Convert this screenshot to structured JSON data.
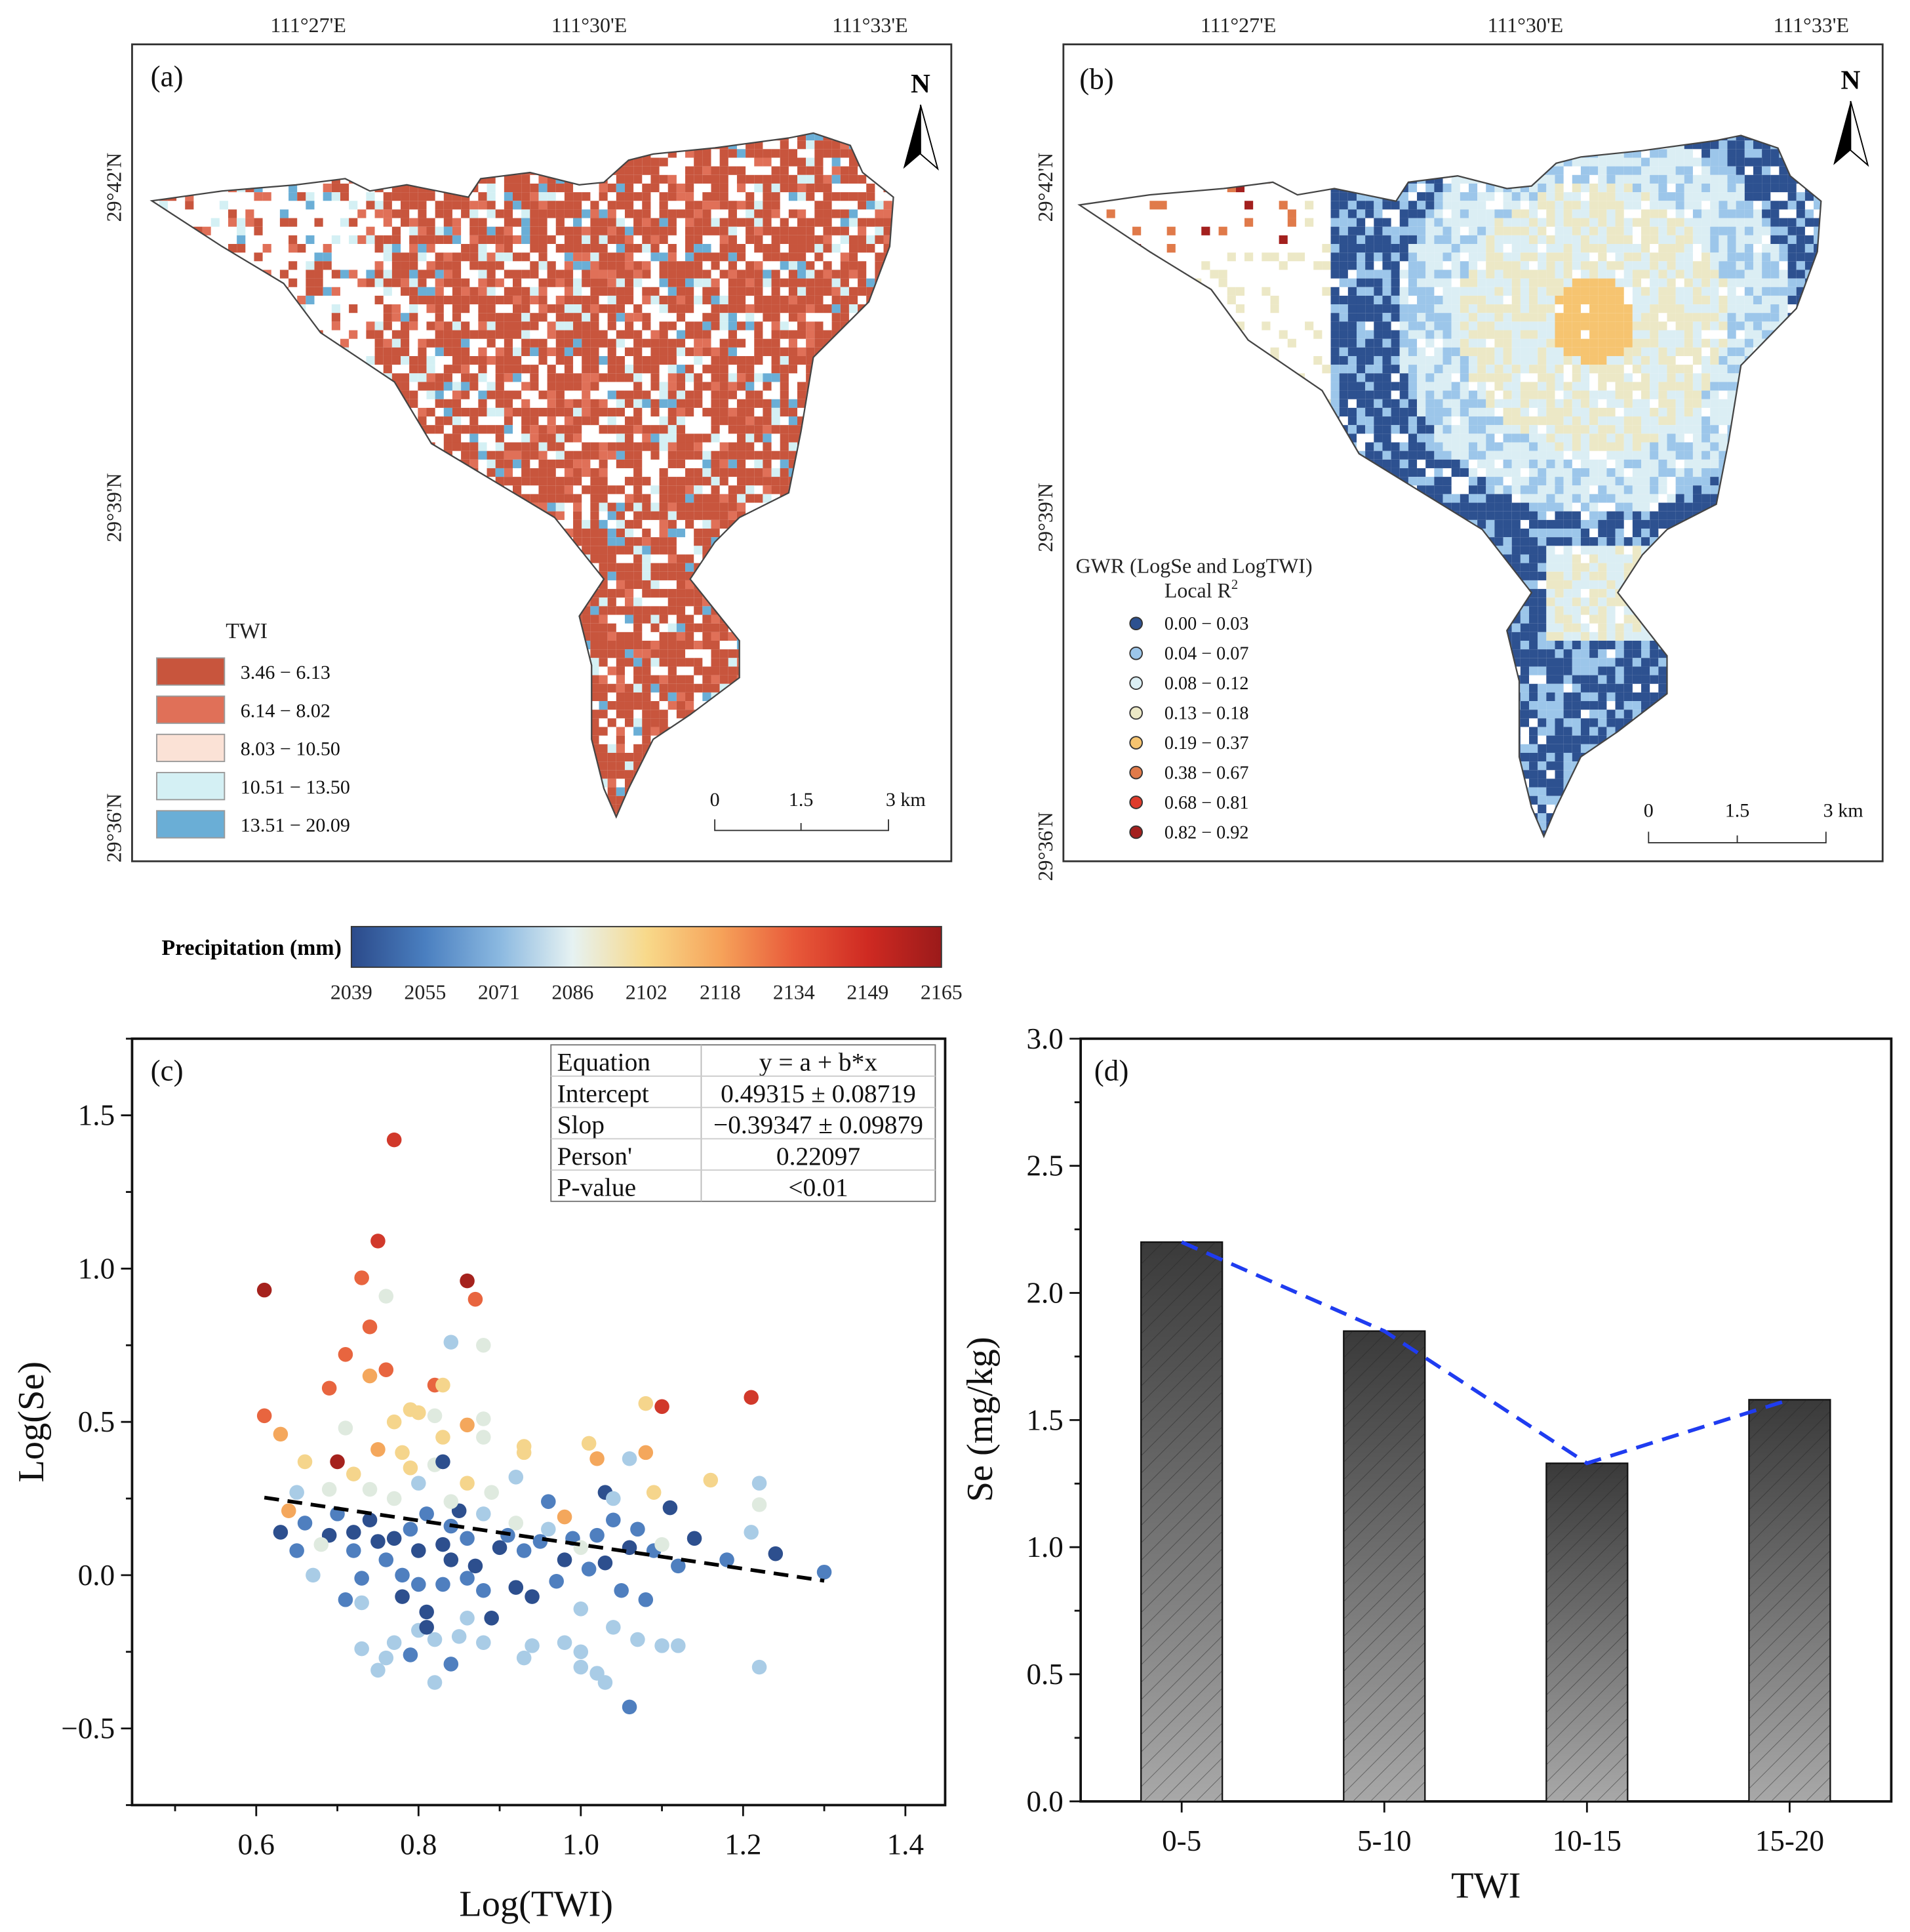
{
  "panel_a": {
    "tag": "(a)",
    "north": "N",
    "lon_labels": [
      "111°27'E",
      "111°30'E",
      "111°33'E"
    ],
    "lat_labels": [
      "29°42'N",
      "29°39'N",
      "29°36'N"
    ],
    "legend_title": "TWI",
    "legend": [
      {
        "label": "3.46 − 6.13",
        "color": "#c8553d"
      },
      {
        "label": "6.14 − 8.02",
        "color": "#e07058"
      },
      {
        "label": "8.03 − 10.50",
        "color": "#fbe2d6"
      },
      {
        "label": "10.51 − 13.50",
        "color": "#d4f0f4"
      },
      {
        "label": "13.51 − 20.09",
        "color": "#6aaed6"
      }
    ],
    "scale": [
      "0",
      "1.5",
      "3 km"
    ]
  },
  "panel_b": {
    "tag": "(b)",
    "north": "N",
    "lon_labels": [
      "111°27'E",
      "111°30'E",
      "111°33'E"
    ],
    "lat_labels": [
      "29°42'N",
      "29°39'N",
      "29°36'N"
    ],
    "legend_title": "GWR (LogSe and LogTWI)",
    "legend_subtitle": "Local R",
    "legend_sup": "2",
    "legend": [
      {
        "label": "0.00 − 0.03",
        "color": "#2d5190"
      },
      {
        "label": "0.04 − 0.07",
        "color": "#9cc6ea"
      },
      {
        "label": "0.08 − 0.12",
        "color": "#dbeef4"
      },
      {
        "label": "0.13 − 0.18",
        "color": "#ece8c6"
      },
      {
        "label": "0.19 − 0.37",
        "color": "#f6c470"
      },
      {
        "label": "0.38 − 0.67",
        "color": "#e07a4a"
      },
      {
        "label": "0.68 − 0.81",
        "color": "#de3b2c"
      },
      {
        "label": "0.82 − 0.92",
        "color": "#a3201e"
      }
    ],
    "scale": [
      "0",
      "1.5",
      "3 km"
    ]
  },
  "colorbar": {
    "title": "Precipitation (mm)",
    "ticks": [
      "2039",
      "2055",
      "2071",
      "2086",
      "2102",
      "2118",
      "2134",
      "2149",
      "2165"
    ],
    "colors": [
      "#2b4a8a",
      "#4a7fc0",
      "#8ab8e0",
      "#e6f2f2",
      "#f8d98a",
      "#f6a35a",
      "#e85a3a",
      "#cf2a22",
      "#9b1a1a"
    ]
  },
  "chart_data": [
    {
      "type": "scatter",
      "tag": "(c)",
      "xlabel": "Log(TWI)",
      "ylabel": "Log(Se)",
      "xlim": [
        0.447,
        1.449
      ],
      "ylim": [
        -0.75,
        1.75
      ],
      "xticks": [
        "0.6",
        "0.8",
        "1.0",
        "1.2",
        "1.4"
      ],
      "xtick_values": [
        0.6,
        0.8,
        1.0,
        1.2,
        1.4
      ],
      "yticks": [
        "1.5",
        "1.0",
        "0.5",
        "0.0",
        "−0.5"
      ],
      "ytick_values": [
        1.5,
        1.0,
        0.5,
        0.0,
        -0.5
      ],
      "point_colors": [
        "#2d4f8e",
        "#4f7fbf",
        "#a9cce6",
        "#dfeadf",
        "#f5d58c",
        "#f4a75c",
        "#e8653f",
        "#d1392b",
        "#a5221d"
      ],
      "points": [
        [
          0.77,
          1.42,
          7
        ],
        [
          0.75,
          1.09,
          7
        ],
        [
          0.73,
          0.97,
          6
        ],
        [
          0.61,
          0.93,
          8
        ],
        [
          0.86,
          0.96,
          8
        ],
        [
          0.87,
          0.9,
          6
        ],
        [
          0.76,
          0.91,
          3
        ],
        [
          0.74,
          0.81,
          6
        ],
        [
          0.84,
          0.76,
          2
        ],
        [
          0.88,
          0.75,
          3
        ],
        [
          0.71,
          0.72,
          6
        ],
        [
          0.76,
          0.67,
          6
        ],
        [
          0.74,
          0.65,
          5
        ],
        [
          0.82,
          0.62,
          6
        ],
        [
          0.83,
          0.62,
          4
        ],
        [
          0.69,
          0.61,
          6
        ],
        [
          0.61,
          0.52,
          6
        ],
        [
          0.79,
          0.54,
          4
        ],
        [
          0.8,
          0.53,
          4
        ],
        [
          0.82,
          0.52,
          3
        ],
        [
          0.88,
          0.51,
          3
        ],
        [
          0.86,
          0.49,
          5
        ],
        [
          0.63,
          0.46,
          5
        ],
        [
          0.77,
          0.5,
          4
        ],
        [
          0.83,
          0.45,
          4
        ],
        [
          0.88,
          0.45,
          3
        ],
        [
          1.08,
          0.56,
          4
        ],
        [
          1.1,
          0.55,
          7
        ],
        [
          1.21,
          0.58,
          7
        ],
        [
          0.71,
          0.48,
          3
        ],
        [
          0.93,
          0.42,
          4
        ],
        [
          0.93,
          0.4,
          4
        ],
        [
          1.01,
          0.43,
          4
        ],
        [
          1.06,
          0.38,
          2
        ],
        [
          1.02,
          0.38,
          5
        ],
        [
          1.08,
          0.4,
          5
        ],
        [
          0.66,
          0.37,
          4
        ],
        [
          0.7,
          0.37,
          8
        ],
        [
          0.75,
          0.41,
          5
        ],
        [
          0.78,
          0.4,
          4
        ],
        [
          0.82,
          0.36,
          3
        ],
        [
          0.83,
          0.37,
          0
        ],
        [
          0.79,
          0.35,
          4
        ],
        [
          0.72,
          0.33,
          4
        ],
        [
          0.92,
          0.32,
          2
        ],
        [
          0.98,
          0.19,
          5
        ],
        [
          1.16,
          0.31,
          4
        ],
        [
          1.22,
          0.3,
          2
        ],
        [
          1.22,
          0.23,
          3
        ],
        [
          1.21,
          0.14,
          2
        ],
        [
          1.09,
          0.27,
          4
        ],
        [
          1.03,
          0.27,
          0
        ],
        [
          0.86,
          0.3,
          4
        ],
        [
          0.89,
          0.27,
          3
        ],
        [
          0.65,
          0.27,
          2
        ],
        [
          0.64,
          0.21,
          5
        ],
        [
          0.63,
          0.14,
          0
        ],
        [
          0.65,
          0.08,
          1
        ],
        [
          0.67,
          0.0,
          2
        ],
        [
          0.66,
          0.17,
          1
        ],
        [
          0.69,
          0.13,
          0
        ],
        [
          0.7,
          0.2,
          1
        ],
        [
          0.72,
          0.14,
          0
        ],
        [
          0.72,
          0.08,
          1
        ],
        [
          0.73,
          -0.01,
          1
        ],
        [
          0.71,
          -0.08,
          1
        ],
        [
          0.73,
          -0.09,
          2
        ],
        [
          0.74,
          0.18,
          0
        ],
        [
          0.75,
          0.11,
          0
        ],
        [
          0.76,
          0.05,
          1
        ],
        [
          0.77,
          0.12,
          0
        ],
        [
          0.78,
          0.0,
          1
        ],
        [
          0.78,
          -0.07,
          0
        ],
        [
          0.79,
          0.15,
          1
        ],
        [
          0.8,
          0.08,
          0
        ],
        [
          0.8,
          -0.03,
          1
        ],
        [
          0.81,
          0.2,
          1
        ],
        [
          0.81,
          -0.12,
          0
        ],
        [
          0.82,
          -0.21,
          2
        ],
        [
          0.83,
          0.1,
          0
        ],
        [
          0.83,
          -0.03,
          1
        ],
        [
          0.84,
          0.05,
          0
        ],
        [
          0.84,
          0.16,
          1
        ],
        [
          0.85,
          0.21,
          0
        ],
        [
          0.86,
          -0.01,
          1
        ],
        [
          0.86,
          0.12,
          1
        ],
        [
          0.87,
          0.03,
          0
        ],
        [
          0.88,
          -0.05,
          1
        ],
        [
          0.89,
          -0.14,
          0
        ],
        [
          0.9,
          0.09,
          0
        ],
        [
          0.91,
          0.13,
          1
        ],
        [
          0.92,
          -0.04,
          0
        ],
        [
          0.93,
          0.08,
          1
        ],
        [
          0.94,
          -0.07,
          0
        ],
        [
          0.95,
          0.11,
          1
        ],
        [
          0.96,
          0.24,
          1
        ],
        [
          0.97,
          -0.02,
          1
        ],
        [
          0.98,
          0.05,
          0
        ],
        [
          0.99,
          0.12,
          1
        ],
        [
          1.0,
          -0.11,
          2
        ],
        [
          1.01,
          0.02,
          1
        ],
        [
          1.02,
          0.13,
          1
        ],
        [
          1.03,
          0.04,
          0
        ],
        [
          1.04,
          0.18,
          1
        ],
        [
          1.05,
          -0.05,
          1
        ],
        [
          1.06,
          0.09,
          0
        ],
        [
          1.06,
          -0.43,
          1
        ],
        [
          1.07,
          0.15,
          1
        ],
        [
          1.08,
          -0.08,
          1
        ],
        [
          1.09,
          0.08,
          1
        ],
        [
          1.1,
          -0.23,
          2
        ],
        [
          1.11,
          0.22,
          0
        ],
        [
          1.12,
          0.03,
          1
        ],
        [
          1.14,
          0.12,
          0
        ],
        [
          1.18,
          0.05,
          1
        ],
        [
          1.24,
          0.07,
          0
        ],
        [
          1.3,
          0.01,
          1
        ],
        [
          1.22,
          -0.3,
          2
        ],
        [
          0.73,
          -0.24,
          2
        ],
        [
          0.75,
          -0.31,
          2
        ],
        [
          0.76,
          -0.27,
          2
        ],
        [
          0.77,
          -0.22,
          2
        ],
        [
          0.79,
          -0.26,
          1
        ],
        [
          0.8,
          -0.18,
          2
        ],
        [
          0.81,
          -0.17,
          0
        ],
        [
          0.82,
          -0.35,
          2
        ],
        [
          0.84,
          -0.29,
          1
        ],
        [
          0.85,
          -0.2,
          2
        ],
        [
          0.86,
          -0.14,
          2
        ],
        [
          0.88,
          -0.22,
          2
        ],
        [
          0.93,
          -0.27,
          2
        ],
        [
          0.94,
          -0.23,
          2
        ],
        [
          0.98,
          -0.22,
          2
        ],
        [
          1.0,
          -0.25,
          2
        ],
        [
          1.0,
          -0.3,
          2
        ],
        [
          1.02,
          -0.32,
          2
        ],
        [
          1.03,
          -0.35,
          2
        ],
        [
          1.04,
          -0.17,
          2
        ],
        [
          1.07,
          -0.21,
          2
        ],
        [
          1.12,
          -0.23,
          2
        ],
        [
          0.68,
          0.1,
          3
        ],
        [
          0.69,
          0.28,
          3
        ],
        [
          0.74,
          0.28,
          3
        ],
        [
          0.77,
          0.25,
          3
        ],
        [
          0.8,
          0.3,
          2
        ],
        [
          0.84,
          0.24,
          3
        ],
        [
          0.88,
          0.2,
          2
        ],
        [
          0.92,
          0.17,
          3
        ],
        [
          0.96,
          0.15,
          2
        ],
        [
          1.0,
          0.09,
          3
        ],
        [
          1.04,
          0.25,
          2
        ],
        [
          1.1,
          0.1,
          3
        ]
      ],
      "fit": {
        "intercept": 0.49315,
        "slope": -0.39347,
        "x_range": [
          0.61,
          1.3
        ]
      },
      "stats_table": [
        [
          "Equation",
          "y = a + b*x"
        ],
        [
          "Intercept",
          "0.49315 ± 0.08719"
        ],
        [
          "Slop",
          "−0.39347 ± 0.09879"
        ],
        [
          "Person'",
          "0.22097"
        ],
        [
          "P-value",
          "<0.01"
        ]
      ]
    },
    {
      "type": "bar",
      "tag": "(d)",
      "xlabel": "TWI",
      "ylabel": "Se (mg/kg)",
      "categories": [
        "0-5",
        "5-10",
        "10-15",
        "15-20"
      ],
      "values": [
        2.2,
        1.85,
        1.33,
        1.58
      ],
      "ylim": [
        0,
        3.0
      ],
      "yticks": [
        "0.0",
        "0.5",
        "1.0",
        "1.5",
        "2.0",
        "2.5",
        "3.0"
      ],
      "trend_line_color": "#1f3cf0"
    }
  ]
}
